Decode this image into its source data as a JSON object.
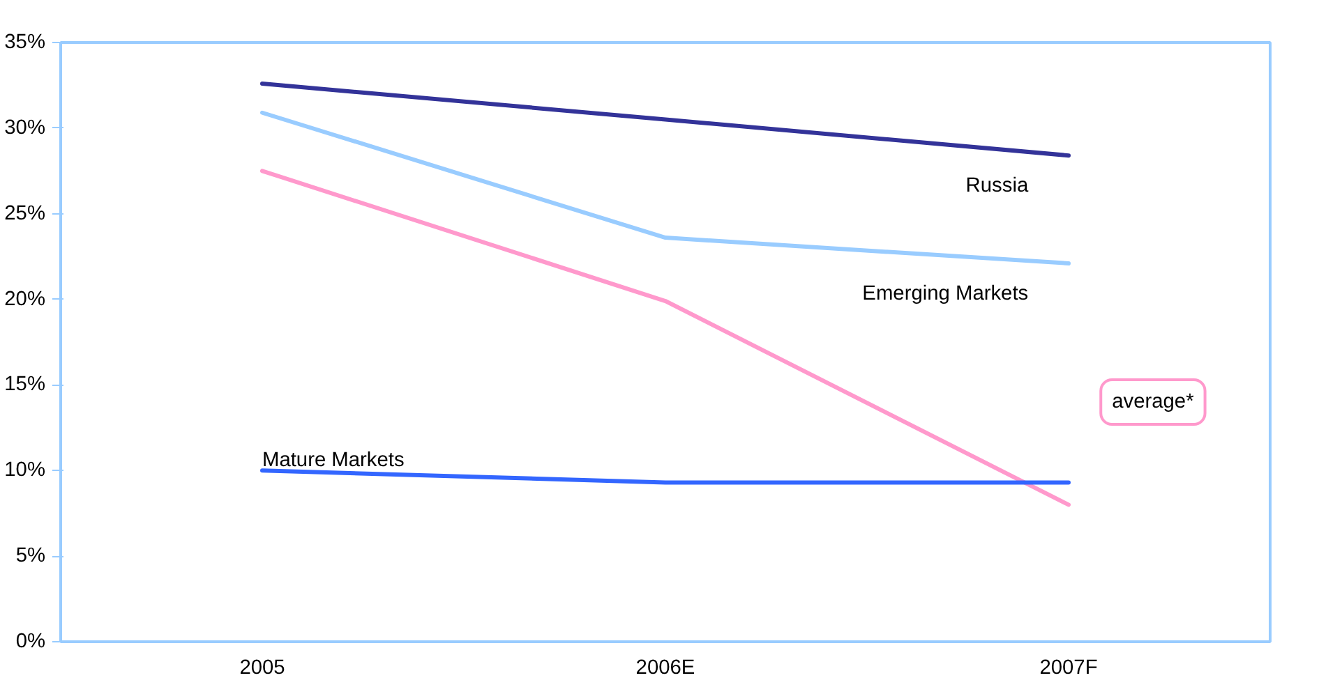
{
  "chart_data": {
    "type": "line",
    "categories": [
      "2005",
      "2006E",
      "2007F"
    ],
    "ylim": [
      0,
      0.35
    ],
    "yticks": [
      {
        "value": 0,
        "label": "0%"
      },
      {
        "value": 0.05,
        "label": "5%"
      },
      {
        "value": 0.1,
        "label": "10%"
      },
      {
        "value": 0.15,
        "label": "15%"
      },
      {
        "value": 0.2,
        "label": "20%"
      },
      {
        "value": 0.25,
        "label": "25%"
      },
      {
        "value": 0.3,
        "label": "30%"
      },
      {
        "value": 0.35,
        "label": "35%"
      }
    ],
    "grid": false,
    "marker": "none",
    "line_style": "solid",
    "series": [
      {
        "name": "Russia",
        "color": "#333399",
        "values": [
          0.326,
          0.305,
          0.284
        ]
      },
      {
        "name": "Emerging Markets",
        "color": "#99ccff",
        "values": [
          0.309,
          0.236,
          0.221
        ]
      },
      {
        "name": "average*",
        "color": "#ff99cc",
        "values": [
          0.275,
          0.199,
          0.08
        ]
      },
      {
        "name": "Mature Markets",
        "color": "#3366ff",
        "values": [
          0.1,
          0.093,
          0.093
        ]
      }
    ]
  }
}
